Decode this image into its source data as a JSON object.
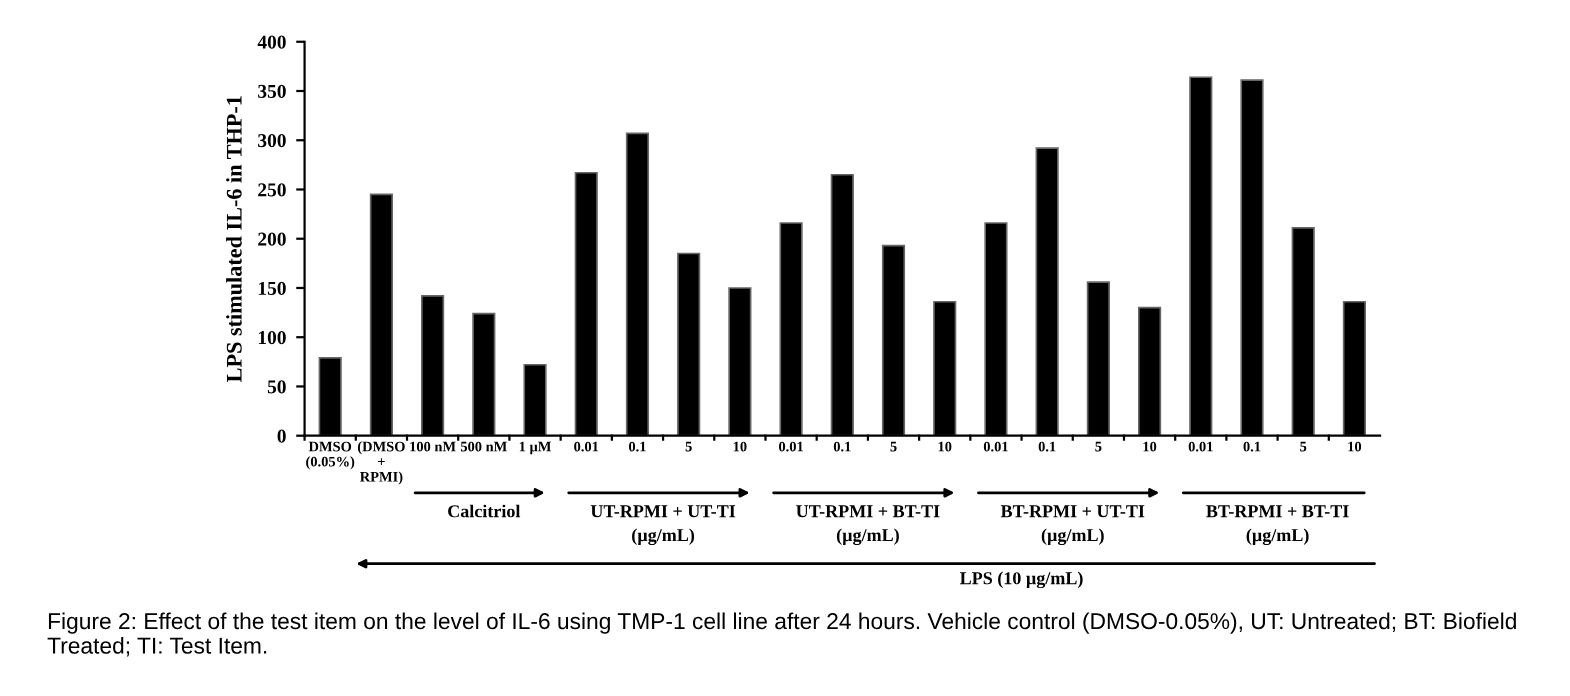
{
  "chart_data": {
    "type": "bar",
    "categories": [
      "DMSO\n(0.05%)",
      "(DMSO\n+\nRPMI)",
      "100 nM",
      "500 nM",
      "1 µM",
      "0.01",
      "0.1",
      "5",
      "10",
      "0.01",
      "0.1",
      "5",
      "10",
      "0.01",
      "0.1",
      "5",
      "10",
      "0.01",
      "0.1",
      "5",
      "10"
    ],
    "values": [
      79,
      245,
      142,
      124,
      72,
      267,
      307,
      185,
      150,
      216,
      265,
      193,
      136,
      216,
      292,
      156,
      130,
      364,
      361,
      211,
      136
    ],
    "color": "#000000",
    "ylabel": "LPS stimulated IL-6 in THP-1",
    "ylim": [
      0,
      400
    ],
    "yticks": [
      0,
      50,
      100,
      150,
      200,
      250,
      300,
      350,
      400
    ],
    "grid": false,
    "legend": false,
    "annotations": [
      "Calcitriol",
      "UT-RPMI + UT-TI\n(µg/mL)",
      "UT-RPMI + BT-TI\n(µg/mL)",
      "BT-RPMI + UT-TI\n(µg/mL)",
      "BT-RPMI + BT-TI\n(µg/mL)",
      "LPS (10 µg/mL)",
      "Figure 2: Effect of the test item on the level of IL-6 using TMP-1 cell line after 24 hours. Vehicle control (DMSO-0.05%), UT: Untreated; BT: Biofield Treated; TI: Test Item."
    ]
  }
}
